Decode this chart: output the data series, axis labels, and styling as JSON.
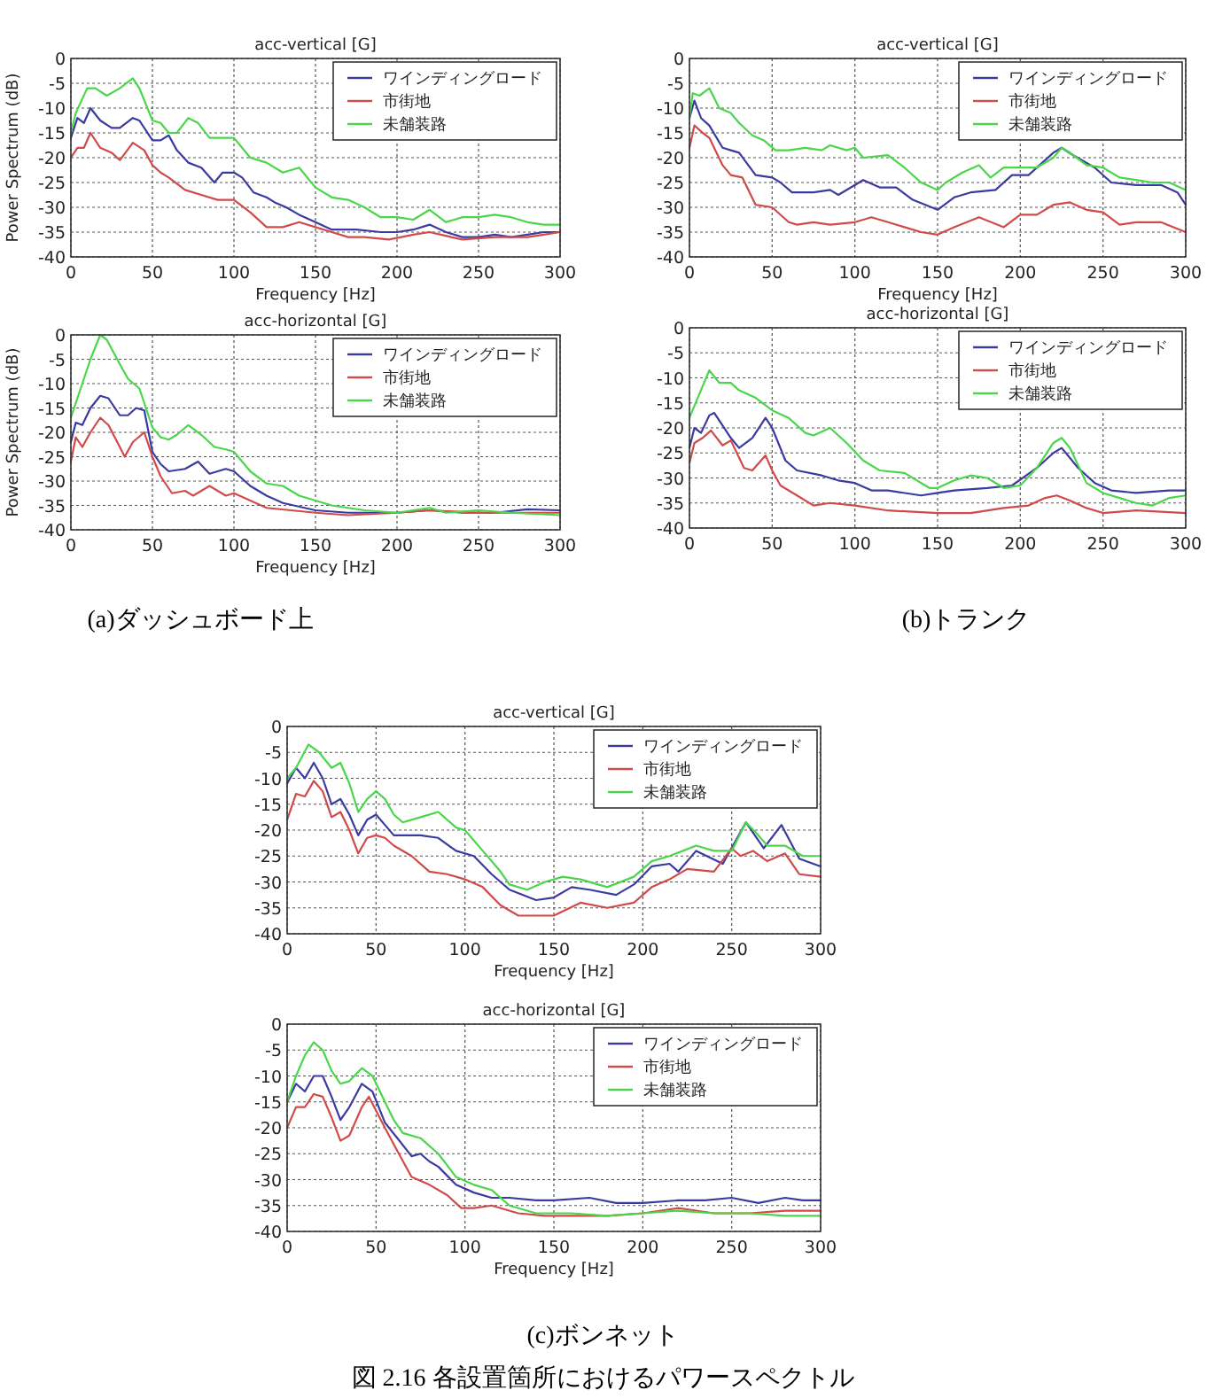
{
  "chart_data": [
    {
      "type": "line",
      "title": "acc-vertical [G]",
      "xlabel": "Frequency [Hz]",
      "ylabel": "Power Spectrum (dB)",
      "xlim": [
        0,
        300
      ],
      "xticks": [
        0,
        50,
        100,
        150,
        200,
        250,
        300
      ],
      "ylim": [
        -40,
        0
      ],
      "yticks": [
        -40,
        -35,
        -30,
        -25,
        -20,
        -15,
        -10,
        -5,
        0
      ],
      "grid": true,
      "legend": "top right",
      "series": [
        {
          "name": "ワインディングロード",
          "color": "#3a3aa0",
          "x": [
            0,
            4,
            8,
            12,
            18,
            25,
            30,
            38,
            42,
            50,
            55,
            60,
            65,
            72,
            80,
            88,
            93,
            100,
            105,
            112,
            120,
            125,
            132,
            140,
            150,
            160,
            175,
            190,
            200,
            210,
            220,
            230,
            240,
            250,
            260,
            270,
            280,
            290,
            300
          ],
          "values": [
            -16,
            -12,
            -13,
            -10,
            -12.5,
            -14,
            -14,
            -12,
            -12.5,
            -16.5,
            -16.5,
            -15.5,
            -18.5,
            -21,
            -22,
            -25,
            -23,
            -23,
            -24,
            -27,
            -28,
            -29,
            -30,
            -31.5,
            -33,
            -34.5,
            -34.5,
            -35,
            -35,
            -34.5,
            -33.5,
            -35,
            -36,
            -36,
            -35.5,
            -36,
            -35.5,
            -35,
            -35
          ]
        },
        {
          "name": "市街地",
          "color": "#d04a4a",
          "x": [
            0,
            4,
            8,
            12,
            18,
            25,
            30,
            38,
            45,
            50,
            55,
            60,
            70,
            80,
            90,
            100,
            110,
            120,
            130,
            140,
            150,
            160,
            170,
            180,
            195,
            210,
            220,
            240,
            260,
            280,
            290,
            300
          ],
          "values": [
            -20,
            -18,
            -18,
            -15,
            -18,
            -19,
            -20.5,
            -17,
            -18.5,
            -21.5,
            -23,
            -24,
            -26.5,
            -27.5,
            -28.5,
            -28.5,
            -31,
            -34,
            -34,
            -33,
            -34,
            -35,
            -36,
            -36,
            -36.5,
            -35.5,
            -35,
            -36.5,
            -36,
            -36,
            -35.5,
            -35
          ]
        },
        {
          "name": "未舗装路",
          "color": "#4ad64a",
          "x": [
            0,
            3,
            10,
            15,
            22,
            30,
            38,
            42,
            50,
            55,
            60,
            65,
            72,
            78,
            85,
            95,
            100,
            110,
            120,
            130,
            140,
            150,
            160,
            170,
            180,
            190,
            200,
            210,
            220,
            230,
            240,
            250,
            260,
            270,
            280,
            290,
            300
          ],
          "values": [
            -15,
            -11,
            -6,
            -6,
            -7.5,
            -6,
            -4,
            -6,
            -12.5,
            -13,
            -15,
            -15,
            -12,
            -13,
            -16,
            -16,
            -16,
            -20,
            -21,
            -23,
            -22,
            -26,
            -28,
            -28.5,
            -30,
            -32,
            -32,
            -32.5,
            -30.5,
            -33,
            -32,
            -32,
            -31.5,
            -32,
            -33,
            -33.5,
            -33.5
          ]
        }
      ]
    },
    {
      "type": "line",
      "title": "acc-horizontal [G]",
      "xlabel": "Frequency [Hz]",
      "ylabel": "Power Spectrum (dB)",
      "xlim": [
        0,
        300
      ],
      "xticks": [
        0,
        50,
        100,
        150,
        200,
        250,
        300
      ],
      "ylim": [
        -40,
        0
      ],
      "yticks": [
        -40,
        -35,
        -30,
        -25,
        -20,
        -15,
        -10,
        -5,
        0
      ],
      "grid": true,
      "legend": "top right",
      "annotations": [
        "(a)ダッシュボード上"
      ],
      "series": [
        {
          "name": "ワインディングロード",
          "color": "#3a3aa0",
          "x": [
            0,
            3,
            7,
            12,
            18,
            23,
            30,
            35,
            40,
            45,
            50,
            55,
            60,
            70,
            78,
            85,
            95,
            100,
            110,
            120,
            130,
            150,
            170,
            200,
            220,
            240,
            260,
            280,
            300
          ],
          "values": [
            -22,
            -18,
            -18.5,
            -15,
            -12.5,
            -13,
            -16.5,
            -16.5,
            -15,
            -15.5,
            -24,
            -26.5,
            -28,
            -27.5,
            -26,
            -28.5,
            -27.5,
            -28,
            -31,
            -33,
            -34.5,
            -36,
            -36.5,
            -36.5,
            -36,
            -36.5,
            -36.5,
            -35.8,
            -36
          ]
        },
        {
          "name": "市街地",
          "color": "#d04a4a",
          "x": [
            0,
            3,
            7,
            12,
            18,
            23,
            30,
            33,
            38,
            45,
            50,
            55,
            62,
            70,
            75,
            85,
            95,
            100,
            110,
            120,
            135,
            150,
            170,
            200,
            220,
            250,
            300
          ],
          "values": [
            -26,
            -21,
            -23,
            -20,
            -17,
            -18.5,
            -23,
            -25,
            -22,
            -20,
            -25,
            -29,
            -32.5,
            -32,
            -33,
            -31,
            -33,
            -32.5,
            -34,
            -35.5,
            -36,
            -36.5,
            -37,
            -36.5,
            -36,
            -36.5,
            -36.5
          ]
        },
        {
          "name": "未舗装路",
          "color": "#4ad64a",
          "x": [
            0,
            5,
            12,
            18,
            22,
            30,
            35,
            42,
            50,
            55,
            60,
            65,
            72,
            80,
            88,
            95,
            100,
            110,
            120,
            130,
            140,
            150,
            160,
            170,
            180,
            200,
            220,
            230,
            250,
            270,
            300
          ],
          "values": [
            -17,
            -12,
            -5,
            0,
            -1,
            -6,
            -9,
            -11,
            -19,
            -21,
            -21.5,
            -20.5,
            -18.5,
            -20.5,
            -23,
            -23.5,
            -24,
            -28,
            -30.5,
            -31,
            -33,
            -34,
            -35,
            -35.5,
            -36,
            -36.5,
            -35.5,
            -36.5,
            -36,
            -36.5,
            -37
          ]
        }
      ]
    },
    {
      "type": "line",
      "title": "acc-vertical [G]",
      "xlabel": "Frequency [Hz]",
      "xlim": [
        0,
        300
      ],
      "xticks": [
        0,
        50,
        100,
        150,
        200,
        250,
        300
      ],
      "ylim": [
        -40,
        0
      ],
      "yticks": [
        -40,
        -35,
        -30,
        -25,
        -20,
        -15,
        -10,
        -5,
        0
      ],
      "grid": true,
      "legend": "top right",
      "series": [
        {
          "name": "ワインディングロード",
          "color": "#3a3aa0",
          "x": [
            0,
            3,
            7,
            12,
            20,
            25,
            30,
            40,
            50,
            55,
            62,
            75,
            85,
            90,
            105,
            115,
            125,
            135,
            150,
            160,
            170,
            185,
            195,
            205,
            220,
            225,
            232,
            245,
            255,
            270,
            285,
            295,
            300
          ],
          "values": [
            -12,
            -8.5,
            -12,
            -13.5,
            -18,
            -18.5,
            -19,
            -23.5,
            -24,
            -25,
            -27,
            -27,
            -26.5,
            -27.5,
            -24.5,
            -26,
            -26,
            -28.5,
            -30.5,
            -28,
            -27,
            -26.5,
            -23.5,
            -23.5,
            -19,
            -18,
            -19.5,
            -22,
            -25,
            -25.5,
            -25.5,
            -27,
            -29.5
          ]
        },
        {
          "name": "市街地",
          "color": "#d04a4a",
          "x": [
            0,
            3,
            8,
            12,
            20,
            25,
            32,
            40,
            50,
            60,
            65,
            75,
            85,
            100,
            110,
            120,
            130,
            140,
            150,
            160,
            175,
            190,
            200,
            210,
            220,
            230,
            240,
            250,
            260,
            270,
            285,
            300
          ],
          "values": [
            -18,
            -13.5,
            -15,
            -16,
            -21.5,
            -23.5,
            -24,
            -29.5,
            -30,
            -33,
            -33.5,
            -33,
            -33.5,
            -33,
            -32,
            -33,
            -34,
            -35,
            -35.5,
            -34,
            -32,
            -34,
            -31.5,
            -31.5,
            -29.5,
            -29,
            -30.5,
            -31,
            -33.5,
            -33,
            -33,
            -35
          ]
        },
        {
          "name": "未舗装路",
          "color": "#4ad64a",
          "x": [
            0,
            2,
            6,
            12,
            18,
            25,
            30,
            38,
            45,
            52,
            60,
            70,
            80,
            85,
            95,
            100,
            105,
            120,
            130,
            140,
            150,
            155,
            165,
            175,
            182,
            190,
            200,
            210,
            220,
            225,
            230,
            240,
            250,
            260,
            270,
            280,
            290,
            300
          ],
          "values": [
            -12,
            -7,
            -7.5,
            -6,
            -10,
            -11,
            -13,
            -15.5,
            -16.5,
            -18.5,
            -18.5,
            -18,
            -18.5,
            -17.5,
            -18.5,
            -18,
            -20,
            -19.5,
            -22,
            -25,
            -26.5,
            -25,
            -23,
            -21.5,
            -24,
            -22,
            -22,
            -22,
            -20,
            -18,
            -19,
            -21.5,
            -22,
            -24,
            -24.5,
            -25,
            -25,
            -26.5
          ]
        }
      ]
    },
    {
      "type": "line",
      "title": "acc-horizontal [G]",
      "xlim": [
        0,
        300
      ],
      "xticks": [
        0,
        50,
        100,
        150,
        200,
        250,
        300
      ],
      "ylim": [
        -40,
        0
      ],
      "yticks": [
        -40,
        -35,
        -30,
        -25,
        -20,
        -15,
        -10,
        -5,
        0
      ],
      "grid": true,
      "legend": "top right",
      "annotations": [
        "(b)トランク"
      ],
      "series": [
        {
          "name": "ワインディングロード",
          "color": "#3a3aa0",
          "x": [
            0,
            3,
            7,
            12,
            15,
            25,
            30,
            38,
            46,
            50,
            58,
            65,
            80,
            90,
            100,
            110,
            120,
            140,
            150,
            160,
            180,
            195,
            210,
            220,
            225,
            235,
            245,
            255,
            270,
            290,
            300
          ],
          "values": [
            -24,
            -20,
            -21,
            -17.5,
            -17,
            -22,
            -24,
            -22,
            -18,
            -20,
            -26.5,
            -28.5,
            -29.5,
            -30.5,
            -31,
            -32.5,
            -32.5,
            -33.5,
            -33,
            -32.5,
            -32,
            -31.5,
            -28,
            -25,
            -24,
            -28,
            -31,
            -32.5,
            -33,
            -32.5,
            -32.5
          ]
        },
        {
          "name": "市街地",
          "color": "#d04a4a",
          "x": [
            0,
            3,
            8,
            13,
            20,
            25,
            33,
            38,
            46,
            50,
            55,
            65,
            75,
            85,
            100,
            120,
            150,
            170,
            190,
            205,
            215,
            222,
            230,
            240,
            250,
            270,
            300
          ],
          "values": [
            -27,
            -23,
            -22,
            -20.5,
            -23.5,
            -22.5,
            -28,
            -28.5,
            -25.5,
            -28.5,
            -31.5,
            -33.5,
            -35.5,
            -35,
            -35.5,
            -36.5,
            -37,
            -37,
            -36,
            -35.5,
            -34,
            -33.5,
            -34.5,
            -36,
            -37,
            -36.5,
            -37
          ]
        },
        {
          "name": "未舗装路",
          "color": "#4ad64a",
          "x": [
            0,
            5,
            12,
            18,
            25,
            30,
            40,
            50,
            60,
            70,
            75,
            85,
            95,
            105,
            115,
            130,
            145,
            150,
            160,
            170,
            180,
            190,
            200,
            210,
            220,
            225,
            230,
            240,
            250,
            260,
            270,
            280,
            290,
            300
          ],
          "values": [
            -18,
            -14,
            -8.5,
            -11,
            -11,
            -12.5,
            -14,
            -16.5,
            -18,
            -21,
            -21.5,
            -20,
            -23,
            -26.5,
            -28.5,
            -29,
            -32,
            -32,
            -30.5,
            -29.5,
            -30,
            -32,
            -31.5,
            -28,
            -23,
            -22,
            -24,
            -31,
            -33,
            -34,
            -35,
            -35.5,
            -34,
            -33.5
          ]
        }
      ]
    },
    {
      "type": "line",
      "title": "acc-vertical [G]",
      "xlabel": "Frequency [Hz]",
      "xlim": [
        0,
        300
      ],
      "xticks": [
        0,
        50,
        100,
        150,
        200,
        250,
        300
      ],
      "ylim": [
        -40,
        0
      ],
      "yticks": [
        -40,
        -35,
        -30,
        -25,
        -20,
        -15,
        -10,
        -5,
        0
      ],
      "grid": true,
      "legend": "top right",
      "series": [
        {
          "name": "ワインディングロード",
          "color": "#3a3aa0",
          "x": [
            0,
            5,
            10,
            15,
            20,
            25,
            30,
            35,
            40,
            45,
            50,
            55,
            60,
            75,
            85,
            95,
            105,
            115,
            125,
            140,
            150,
            160,
            170,
            185,
            195,
            205,
            215,
            220,
            230,
            245,
            258,
            268,
            278,
            288,
            300
          ],
          "values": [
            -11,
            -8,
            -10,
            -7,
            -10,
            -15,
            -14,
            -17,
            -21,
            -18,
            -17,
            -19,
            -21,
            -21,
            -21.5,
            -24,
            -25,
            -28.5,
            -31.5,
            -33.5,
            -33,
            -31,
            -31.5,
            -32.5,
            -30.5,
            -27,
            -26.5,
            -28,
            -24,
            -26.5,
            -18.5,
            -23.5,
            -19,
            -25.5,
            -27
          ]
        },
        {
          "name": "市街地",
          "color": "#d04a4a",
          "x": [
            0,
            5,
            10,
            15,
            20,
            25,
            30,
            35,
            40,
            45,
            50,
            55,
            60,
            70,
            80,
            90,
            100,
            110,
            120,
            130,
            150,
            165,
            180,
            195,
            205,
            215,
            225,
            240,
            250,
            255,
            262,
            270,
            280,
            288,
            300
          ],
          "values": [
            -18,
            -13,
            -13.5,
            -10.5,
            -12.5,
            -17.5,
            -16.5,
            -20,
            -24.5,
            -21.5,
            -21,
            -21.5,
            -23,
            -25,
            -28,
            -28.5,
            -29.5,
            -31,
            -34.5,
            -36.5,
            -36.5,
            -34,
            -35,
            -34,
            -31,
            -29.5,
            -27.5,
            -28,
            -23.5,
            -25,
            -24,
            -26,
            -24.5,
            -28.5,
            -29
          ]
        },
        {
          "name": "未舗装路",
          "color": "#4ad64a",
          "x": [
            0,
            5,
            12,
            18,
            25,
            30,
            35,
            40,
            45,
            50,
            55,
            60,
            65,
            75,
            85,
            95,
            100,
            110,
            120,
            125,
            135,
            145,
            155,
            165,
            180,
            195,
            205,
            215,
            230,
            240,
            250,
            258,
            265,
            270,
            280,
            290,
            300
          ],
          "values": [
            -10,
            -8,
            -3.5,
            -5,
            -8,
            -7,
            -11,
            -16.5,
            -14,
            -12.5,
            -14,
            -17,
            -18.5,
            -17.5,
            -16.5,
            -19.5,
            -20,
            -24,
            -28,
            -30.5,
            -31.5,
            -30,
            -29,
            -29.5,
            -31,
            -29,
            -26,
            -25,
            -23,
            -24,
            -24,
            -18.5,
            -21,
            -23,
            -23,
            -25,
            -25
          ]
        }
      ]
    },
    {
      "type": "line",
      "title": "acc-horizontal [G]",
      "xlabel": "Frequency [Hz]",
      "xlim": [
        0,
        300
      ],
      "xticks": [
        0,
        50,
        100,
        150,
        200,
        250,
        300
      ],
      "ylim": [
        -40,
        0
      ],
      "yticks": [
        -40,
        -35,
        -30,
        -25,
        -20,
        -15,
        -10,
        -5,
        0
      ],
      "grid": true,
      "legend": "top right",
      "annotations": [
        "(c)ボンネット",
        "図 2.16 各設置箇所におけるパワースペクトル"
      ],
      "series": [
        {
          "name": "ワインディングロード",
          "color": "#3a3aa0",
          "x": [
            0,
            5,
            10,
            15,
            20,
            25,
            30,
            35,
            42,
            48,
            55,
            62,
            70,
            75,
            80,
            85,
            95,
            105,
            115,
            125,
            140,
            150,
            170,
            185,
            200,
            220,
            235,
            250,
            265,
            280,
            290,
            300
          ],
          "values": [
            -15,
            -11.5,
            -13,
            -10,
            -10,
            -14,
            -18.5,
            -16,
            -11.5,
            -13,
            -19,
            -22,
            -25.5,
            -25,
            -26.5,
            -27.5,
            -31,
            -32.5,
            -33.5,
            -33.5,
            -34,
            -34,
            -33.5,
            -34.5,
            -34.5,
            -34,
            -34,
            -33.5,
            -34.5,
            -33.5,
            -34,
            -34
          ]
        },
        {
          "name": "市街地",
          "color": "#d04a4a",
          "x": [
            0,
            5,
            10,
            15,
            20,
            25,
            30,
            35,
            42,
            46,
            55,
            62,
            70,
            80,
            90,
            98,
            105,
            115,
            130,
            145,
            160,
            180,
            200,
            220,
            240,
            260,
            280,
            300
          ],
          "values": [
            -20,
            -16,
            -16,
            -13.5,
            -14,
            -18,
            -22.5,
            -21.5,
            -16,
            -14,
            -20,
            -24.5,
            -29.5,
            -31,
            -33,
            -35.5,
            -35.5,
            -35,
            -36.5,
            -37,
            -37,
            -37,
            -36.5,
            -35.5,
            -36.5,
            -36.5,
            -36,
            -36
          ]
        },
        {
          "name": "未舗装路",
          "color": "#4ad64a",
          "x": [
            0,
            5,
            10,
            15,
            20,
            25,
            30,
            35,
            42,
            48,
            55,
            60,
            65,
            75,
            85,
            95,
            105,
            115,
            125,
            140,
            160,
            180,
            200,
            220,
            240,
            260,
            280,
            300
          ],
          "values": [
            -15,
            -10,
            -6,
            -3.5,
            -5,
            -9,
            -11.5,
            -11,
            -8.5,
            -10,
            -15,
            -18.5,
            -21,
            -22,
            -25,
            -29.5,
            -31,
            -32,
            -35,
            -36.5,
            -36.5,
            -37,
            -36.5,
            -36,
            -36.5,
            -36.5,
            -37,
            -37
          ]
        }
      ]
    }
  ]
}
